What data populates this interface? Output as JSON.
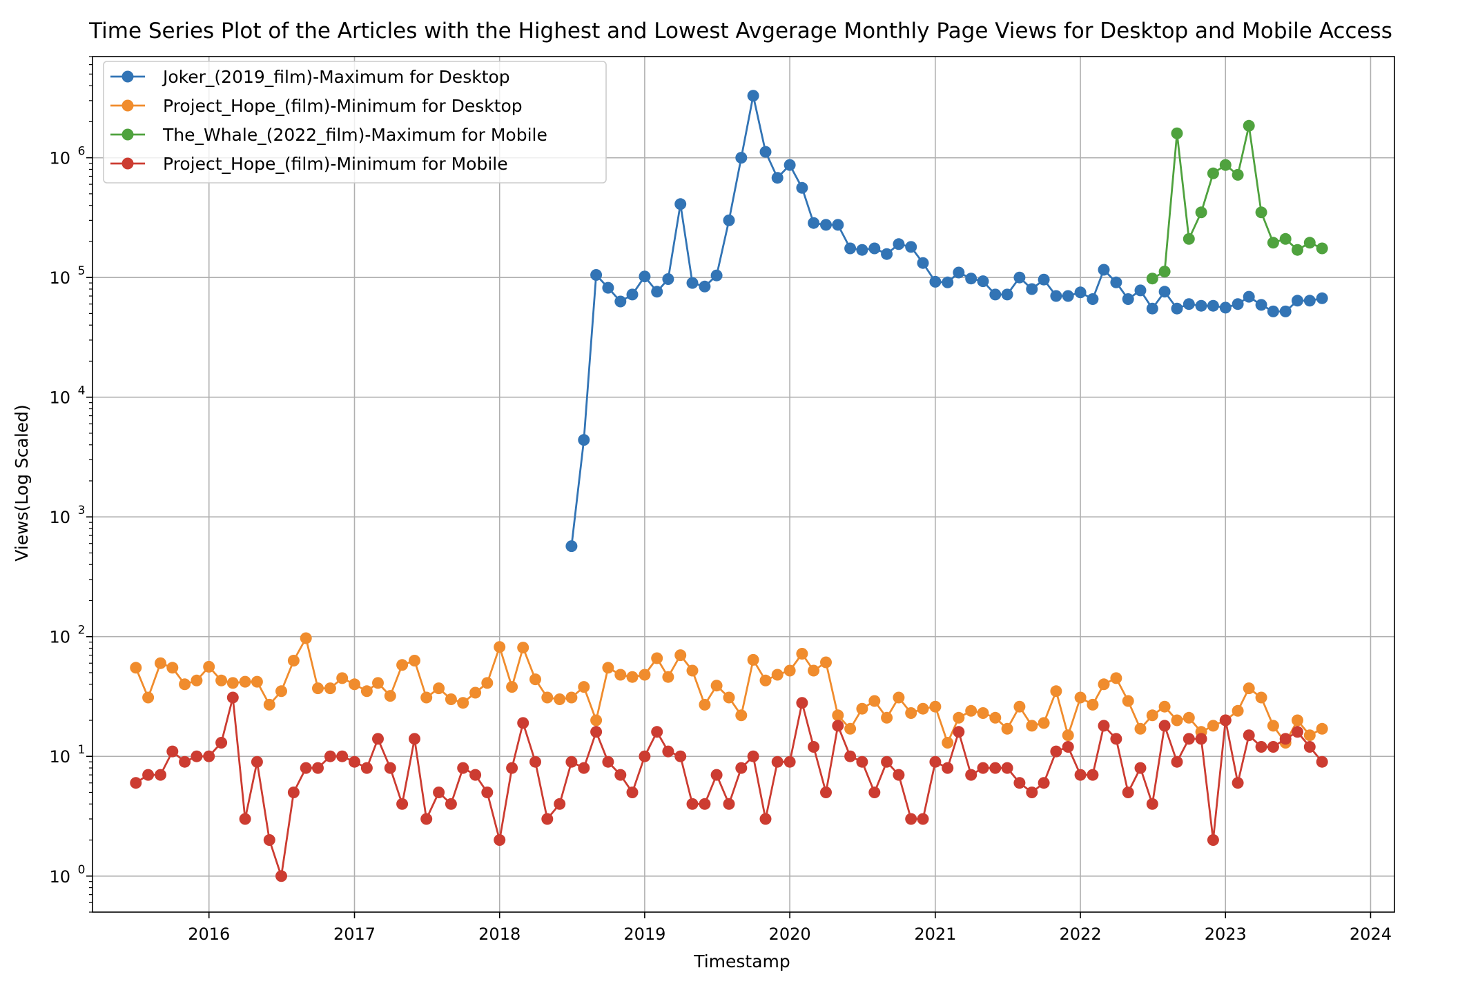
{
  "chart_data": {
    "type": "line",
    "title": "Time Series Plot of the Articles with the Highest and Lowest Avgerage Monthly Page Views for Desktop and Mobile Access",
    "xlabel": "Timestamp",
    "ylabel": "Views(Log Scaled)",
    "x_axis": {
      "type": "date",
      "range": [
        "2015-03-14",
        "2024-03-01"
      ],
      "ticks": [
        "2016",
        "2017",
        "2018",
        "2019",
        "2020",
        "2021",
        "2022",
        "2023",
        "2024"
      ]
    },
    "y_axis": {
      "scale": "log",
      "range": [
        0.5,
        7000000
      ],
      "ticks": [
        {
          "value": 1,
          "base": "10",
          "exp": "0"
        },
        {
          "value": 10,
          "base": "10",
          "exp": "1"
        },
        {
          "value": 100,
          "base": "10",
          "exp": "2"
        },
        {
          "value": 1000,
          "base": "10",
          "exp": "3"
        },
        {
          "value": 10000,
          "base": "10",
          "exp": "4"
        },
        {
          "value": 100000,
          "base": "10",
          "exp": "5"
        },
        {
          "value": 1000000,
          "base": "10",
          "exp": "6"
        }
      ]
    },
    "grid": true,
    "legend_position": "top-left",
    "series": [
      {
        "name": "Joker_(2019_film)-Maximum for Desktop",
        "color": "#3274b5",
        "start": "2018-07",
        "values": [
          570,
          4400,
          105000,
          82000,
          63000,
          72000,
          102000,
          76000,
          97000,
          410000,
          90000,
          84000,
          104000,
          300000,
          1000000,
          3300000,
          1120000,
          680000,
          870000,
          560000,
          285000,
          275000,
          275000,
          175000,
          170000,
          175000,
          157000,
          190000,
          180000,
          132000,
          92000,
          91000,
          110000,
          98000,
          93000,
          72000,
          72000,
          100000,
          80000,
          96000,
          70000,
          70000,
          75000,
          66000,
          116000,
          91000,
          66000,
          78000,
          55000,
          76000,
          55000,
          60000,
          58000,
          58000,
          56000,
          60000,
          69000,
          59000,
          52000,
          52000,
          64000,
          64000,
          67000
        ]
      },
      {
        "name": "Project_Hope_(film)-Minimum for Desktop",
        "color": "#f08c2d",
        "start": "2015-07",
        "values": [
          55,
          31,
          60,
          55,
          40,
          43,
          56,
          43,
          41,
          42,
          42,
          27,
          35,
          63,
          97,
          37,
          37,
          45,
          40,
          35,
          41,
          32,
          58,
          63,
          31,
          37,
          30,
          28,
          34,
          41,
          82,
          38,
          81,
          44,
          31,
          30,
          31,
          38,
          20,
          55,
          48,
          46,
          48,
          66,
          46,
          70,
          52,
          27,
          39,
          31,
          22,
          64,
          43,
          48,
          52,
          72,
          52,
          61,
          22,
          17,
          25,
          29,
          21,
          31,
          23,
          25,
          26,
          13,
          21,
          24,
          23,
          21,
          17,
          26,
          18,
          19,
          35,
          15,
          31,
          27,
          40,
          45,
          29,
          17,
          22,
          26,
          20,
          21,
          16,
          18,
          20,
          24,
          37,
          31,
          18,
          13,
          20,
          15,
          17
        ]
      },
      {
        "name": "The_Whale_(2022_film)-Maximum for Mobile",
        "color": "#4fa23e",
        "start": "2022-07",
        "values": [
          98000,
          112000,
          1600000,
          210000,
          350000,
          740000,
          870000,
          720000,
          1850000,
          350000,
          195000,
          210000,
          170000,
          195000,
          175000
        ]
      },
      {
        "name": "Project_Hope_(film)-Minimum for Mobile",
        "color": "#cc3c31",
        "start": "2015-07",
        "values": [
          6,
          7,
          7,
          11,
          9,
          10,
          10,
          13,
          31,
          3,
          9,
          2,
          1,
          5,
          8,
          8,
          10,
          10,
          9,
          8,
          14,
          8,
          4,
          14,
          3,
          5,
          4,
          8,
          7,
          5,
          2,
          8,
          19,
          9,
          3,
          4,
          9,
          8,
          16,
          9,
          7,
          5,
          10,
          16,
          11,
          10,
          4,
          4,
          7,
          4,
          8,
          10,
          3,
          9,
          9,
          28,
          12,
          5,
          18,
          10,
          9,
          5,
          9,
          7,
          3,
          3,
          9,
          8,
          16,
          7,
          8,
          8,
          8,
          6,
          5,
          6,
          11,
          12,
          7,
          7,
          18,
          14,
          5,
          8,
          4,
          18,
          9,
          14,
          14,
          2,
          20,
          6,
          15,
          12,
          12,
          14,
          16,
          12,
          9
        ]
      }
    ]
  }
}
